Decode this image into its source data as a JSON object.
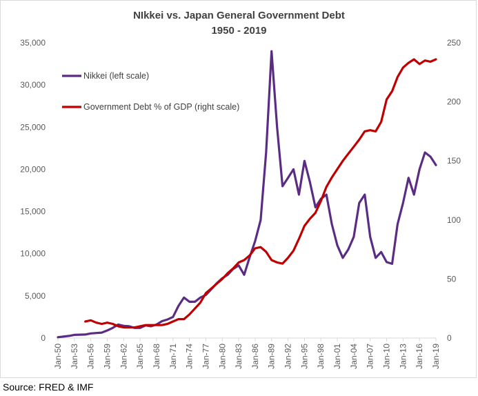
{
  "chart_data": {
    "type": "line",
    "title": "NIkkei vs. Japan General Government Debt",
    "subtitle": "1950 - 2019",
    "source": "Source: FRED & IMF",
    "x_tick_labels": [
      "Jan-50",
      "Jan-53",
      "Jan-56",
      "Jan-59",
      "Jan-62",
      "Jan-65",
      "Jan-68",
      "Jan-71",
      "Jan-74",
      "Jan-77",
      "Jan-80",
      "Jan-83",
      "Jan-86",
      "Jan-89",
      "Jan-92",
      "Jan-95",
      "Jan-98",
      "Jan-01",
      "Jan-04",
      "Jan-07",
      "Jan-10",
      "Jan-13",
      "Jan-16",
      "Jan-19"
    ],
    "left_axis": {
      "ylim": [
        0,
        35000
      ],
      "ticks": [
        "0",
        "5,000",
        "10,000",
        "15,000",
        "20,000",
        "25,000",
        "30,000",
        "35,000"
      ]
    },
    "right_axis": {
      "ylim": [
        0,
        250
      ],
      "ticks": [
        "0",
        "50",
        "100",
        "150",
        "200",
        "250"
      ]
    },
    "xlim": [
      1950,
      2019
    ],
    "grid": false,
    "legend_position": "upper-left",
    "series": [
      {
        "name": "Nikkei (left scale)",
        "axis": "left",
        "color": "#5b2c83",
        "x": [
          1950,
          1951,
          1952,
          1953,
          1954,
          1955,
          1956,
          1957,
          1958,
          1959,
          1960,
          1961,
          1962,
          1963,
          1964,
          1965,
          1966,
          1967,
          1968,
          1969,
          1970,
          1971,
          1972,
          1973,
          1974,
          1975,
          1976,
          1977,
          1978,
          1979,
          1980,
          1981,
          1982,
          1983,
          1984,
          1985,
          1986,
          1987,
          1988,
          1989,
          1990,
          1991,
          1992,
          1993,
          1994,
          1995,
          1996,
          1997,
          1998,
          1999,
          2000,
          2001,
          2002,
          2003,
          2004,
          2005,
          2006,
          2007,
          2008,
          2009,
          2010,
          2011,
          2012,
          2013,
          2014,
          2015,
          2016,
          2017,
          2018,
          2019
        ],
        "values": [
          100,
          170,
          250,
          380,
          400,
          420,
          550,
          600,
          650,
          900,
          1200,
          1600,
          1450,
          1400,
          1200,
          1200,
          1500,
          1400,
          1600,
          2000,
          2200,
          2500,
          3800,
          4800,
          4300,
          4300,
          4800,
          5100,
          5800,
          6500,
          7100,
          7500,
          8200,
          8600,
          7500,
          9600,
          11500,
          14000,
          22000,
          34000,
          25000,
          18000,
          19000,
          20000,
          17000,
          21000,
          18500,
          15500,
          16500,
          17000,
          13500,
          11000,
          9500,
          10500,
          12000,
          16000,
          17000,
          12000,
          9500,
          10200,
          9000,
          8800,
          13500,
          16000,
          19000,
          17000,
          20000,
          22000,
          21500,
          20500
        ]
      },
      {
        "name": "Government Debt % of GDP (right scale)",
        "axis": "right",
        "color": "#c00000",
        "x": [
          1955,
          1956,
          1957,
          1958,
          1959,
          1960,
          1961,
          1962,
          1963,
          1964,
          1965,
          1966,
          1967,
          1968,
          1969,
          1970,
          1971,
          1972,
          1973,
          1974,
          1975,
          1976,
          1977,
          1978,
          1979,
          1980,
          1981,
          1982,
          1983,
          1984,
          1985,
          1986,
          1987,
          1988,
          1989,
          1990,
          1991,
          1992,
          1993,
          1994,
          1995,
          1996,
          1997,
          1998,
          1999,
          2000,
          2001,
          2002,
          2003,
          2004,
          2005,
          2006,
          2007,
          2008,
          2009,
          2010,
          2011,
          2012,
          2013,
          2014,
          2015,
          2016,
          2017,
          2018,
          2019
        ],
        "values": [
          14,
          15,
          13,
          12,
          13,
          12,
          10,
          9,
          9,
          9,
          10,
          11,
          11,
          11,
          11,
          12,
          14,
          16,
          16,
          20,
          25,
          30,
          38,
          42,
          46,
          50,
          55,
          59,
          64,
          66,
          70,
          76,
          77,
          73,
          66,
          64,
          63,
          68,
          74,
          84,
          95,
          101,
          106,
          116,
          128,
          136,
          143,
          150,
          156,
          162,
          168,
          175,
          176,
          175,
          183,
          202,
          209,
          221,
          229,
          233,
          236,
          232,
          235,
          234,
          236
        ]
      }
    ]
  }
}
